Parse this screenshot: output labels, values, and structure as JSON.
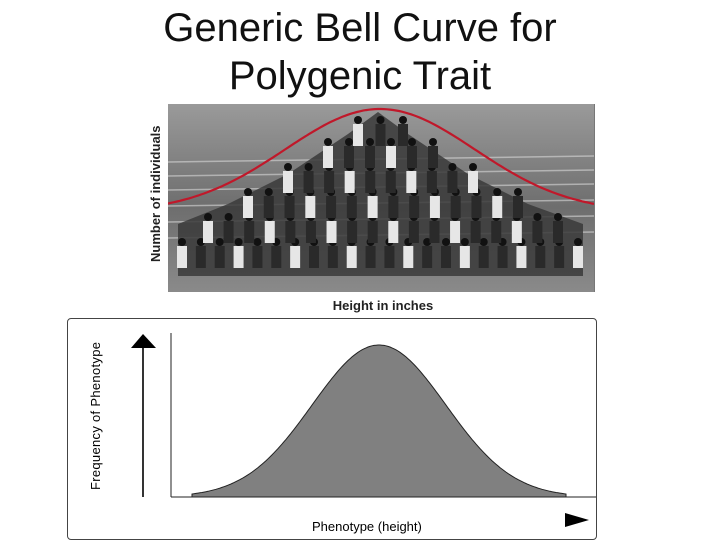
{
  "title": "Generic Bell Curve for Polygenic Trait",
  "photo_figure": {
    "y_axis_label": "Number of individuals",
    "x_axis_label": "Height in inches",
    "curve_color": "#c0182a"
  },
  "chart_data": {
    "type": "area",
    "xlabel": "Phenotype (height)",
    "ylabel": "Frequency of Phenotype",
    "fill_color": "#808080",
    "axis_color": "#000000"
  }
}
